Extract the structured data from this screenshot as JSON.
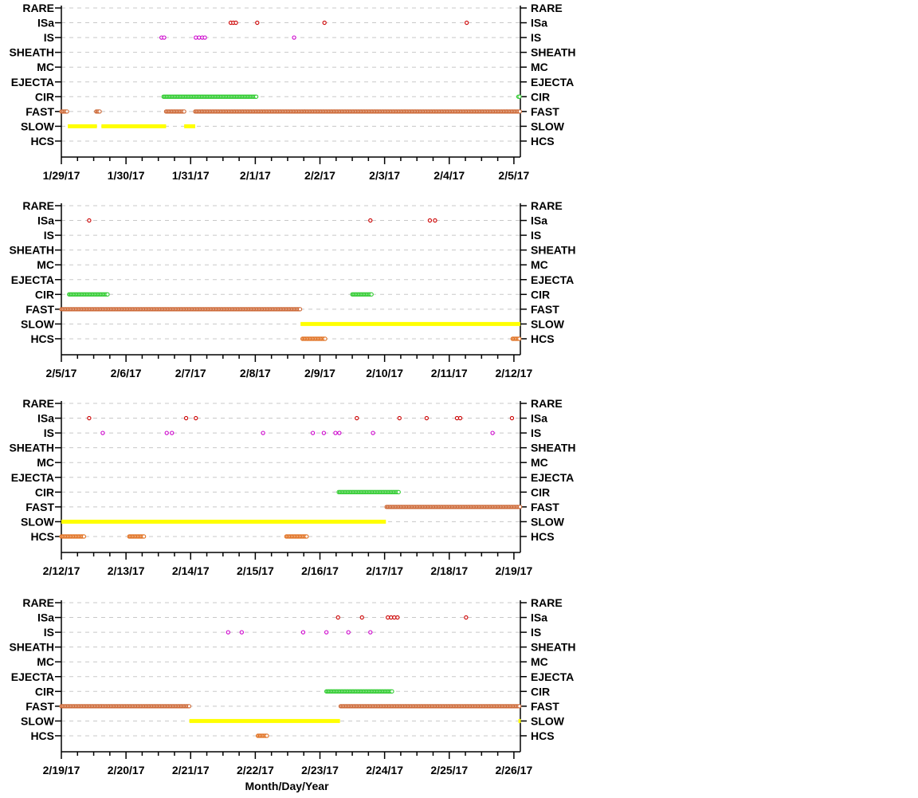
{
  "chart_data": {
    "type": "scatter",
    "xlabel": "Month/Day/Year",
    "categories": [
      "RARE",
      "ISa",
      "IS",
      "SHEATH",
      "MC",
      "EJECTA",
      "CIR",
      "FAST",
      "SLOW",
      "HCS"
    ],
    "colors": {
      "ISa": "#cc0000",
      "IS": "#cc00cc",
      "CIR": "#33cc33",
      "FAST": "#cc6633",
      "SLOW": "#ffff00",
      "HCS": "#e07020",
      "grid": "#c8c8c8"
    },
    "grid": true,
    "panels": [
      {
        "xlim": [
          0,
          7.1
        ],
        "xticklabels": [
          "1/29/17",
          "1/30/17",
          "1/31/17",
          "2/1/17",
          "2/2/17",
          "2/3/17",
          "2/4/17",
          "2/5/17"
        ],
        "points": {
          "ISa": [
            2.62,
            2.66,
            2.7,
            3.03,
            4.07,
            6.27
          ],
          "IS": [
            1.55,
            1.59,
            2.08,
            2.13,
            2.18,
            2.22,
            3.6
          ],
          "CIR": [
            [
              1.58,
              3.03
            ],
            [
              7.07,
              7.1
            ]
          ],
          "FAST": [
            [
              0.0,
              0.1
            ],
            [
              0.54,
              0.6
            ],
            [
              1.62,
              1.9
            ],
            [
              2.07,
              7.1
            ]
          ],
          "SLOW": [
            [
              0.1,
              0.55
            ],
            [
              0.62,
              1.62
            ],
            [
              1.9,
              2.07
            ]
          ]
        }
      },
      {
        "xlim": [
          0,
          7.1
        ],
        "xticklabels": [
          "2/5/17",
          "2/6/17",
          "2/7/17",
          "2/8/17",
          "2/9/17",
          "2/10/17",
          "2/11/17",
          "2/12/17"
        ],
        "points": {
          "ISa": [
            0.43,
            4.78,
            5.7,
            5.78
          ],
          "CIR": [
            [
              0.12,
              0.73
            ],
            [
              4.5,
              4.8
            ]
          ],
          "FAST": [
            [
              0.0,
              3.7
            ]
          ],
          "SLOW": [
            [
              3.7,
              7.1
            ]
          ],
          "HCS": [
            [
              3.73,
              4.08
            ],
            [
              6.98,
              7.1
            ]
          ]
        }
      },
      {
        "xlim": [
          0,
          7.1
        ],
        "xticklabels": [
          "2/12/17",
          "2/13/17",
          "2/14/17",
          "2/15/17",
          "2/16/17",
          "2/17/17",
          "2/18/17",
          "2/19/17"
        ],
        "points": {
          "ISa": [
            0.43,
            1.93,
            2.08,
            4.57,
            5.23,
            5.65,
            6.12,
            6.17,
            6.97
          ],
          "IS": [
            0.64,
            1.63,
            1.71,
            3.12,
            3.89,
            4.06,
            4.24,
            4.3,
            4.82,
            6.67
          ],
          "CIR": [
            [
              4.29,
              5.23
            ]
          ],
          "FAST": [
            [
              5.03,
              7.1
            ]
          ],
          "SLOW": [
            [
              0.0,
              5.02
            ]
          ],
          "HCS": [
            [
              0.0,
              0.35
            ],
            [
              1.05,
              1.28
            ],
            [
              3.48,
              3.8
            ]
          ]
        }
      },
      {
        "xlim": [
          0,
          7.1
        ],
        "xticklabels": [
          "2/19/17",
          "2/20/17",
          "2/21/17",
          "2/22/17",
          "2/23/17",
          "2/24/17",
          "2/25/17",
          "2/26/17"
        ],
        "points": {
          "ISa": [
            4.28,
            4.65,
            5.05,
            5.1,
            5.15,
            5.2,
            6.26
          ],
          "IS": [
            2.58,
            2.79,
            3.74,
            4.1,
            4.44,
            4.78
          ],
          "CIR": [
            [
              4.1,
              5.13
            ]
          ],
          "FAST": [
            [
              0.0,
              1.98
            ],
            [
              4.32,
              7.1
            ]
          ],
          "SLOW": [
            [
              1.98,
              4.31
            ],
            [
              7.07,
              7.1
            ]
          ],
          "HCS": [
            [
              3.04,
              3.18
            ]
          ]
        }
      }
    ]
  }
}
